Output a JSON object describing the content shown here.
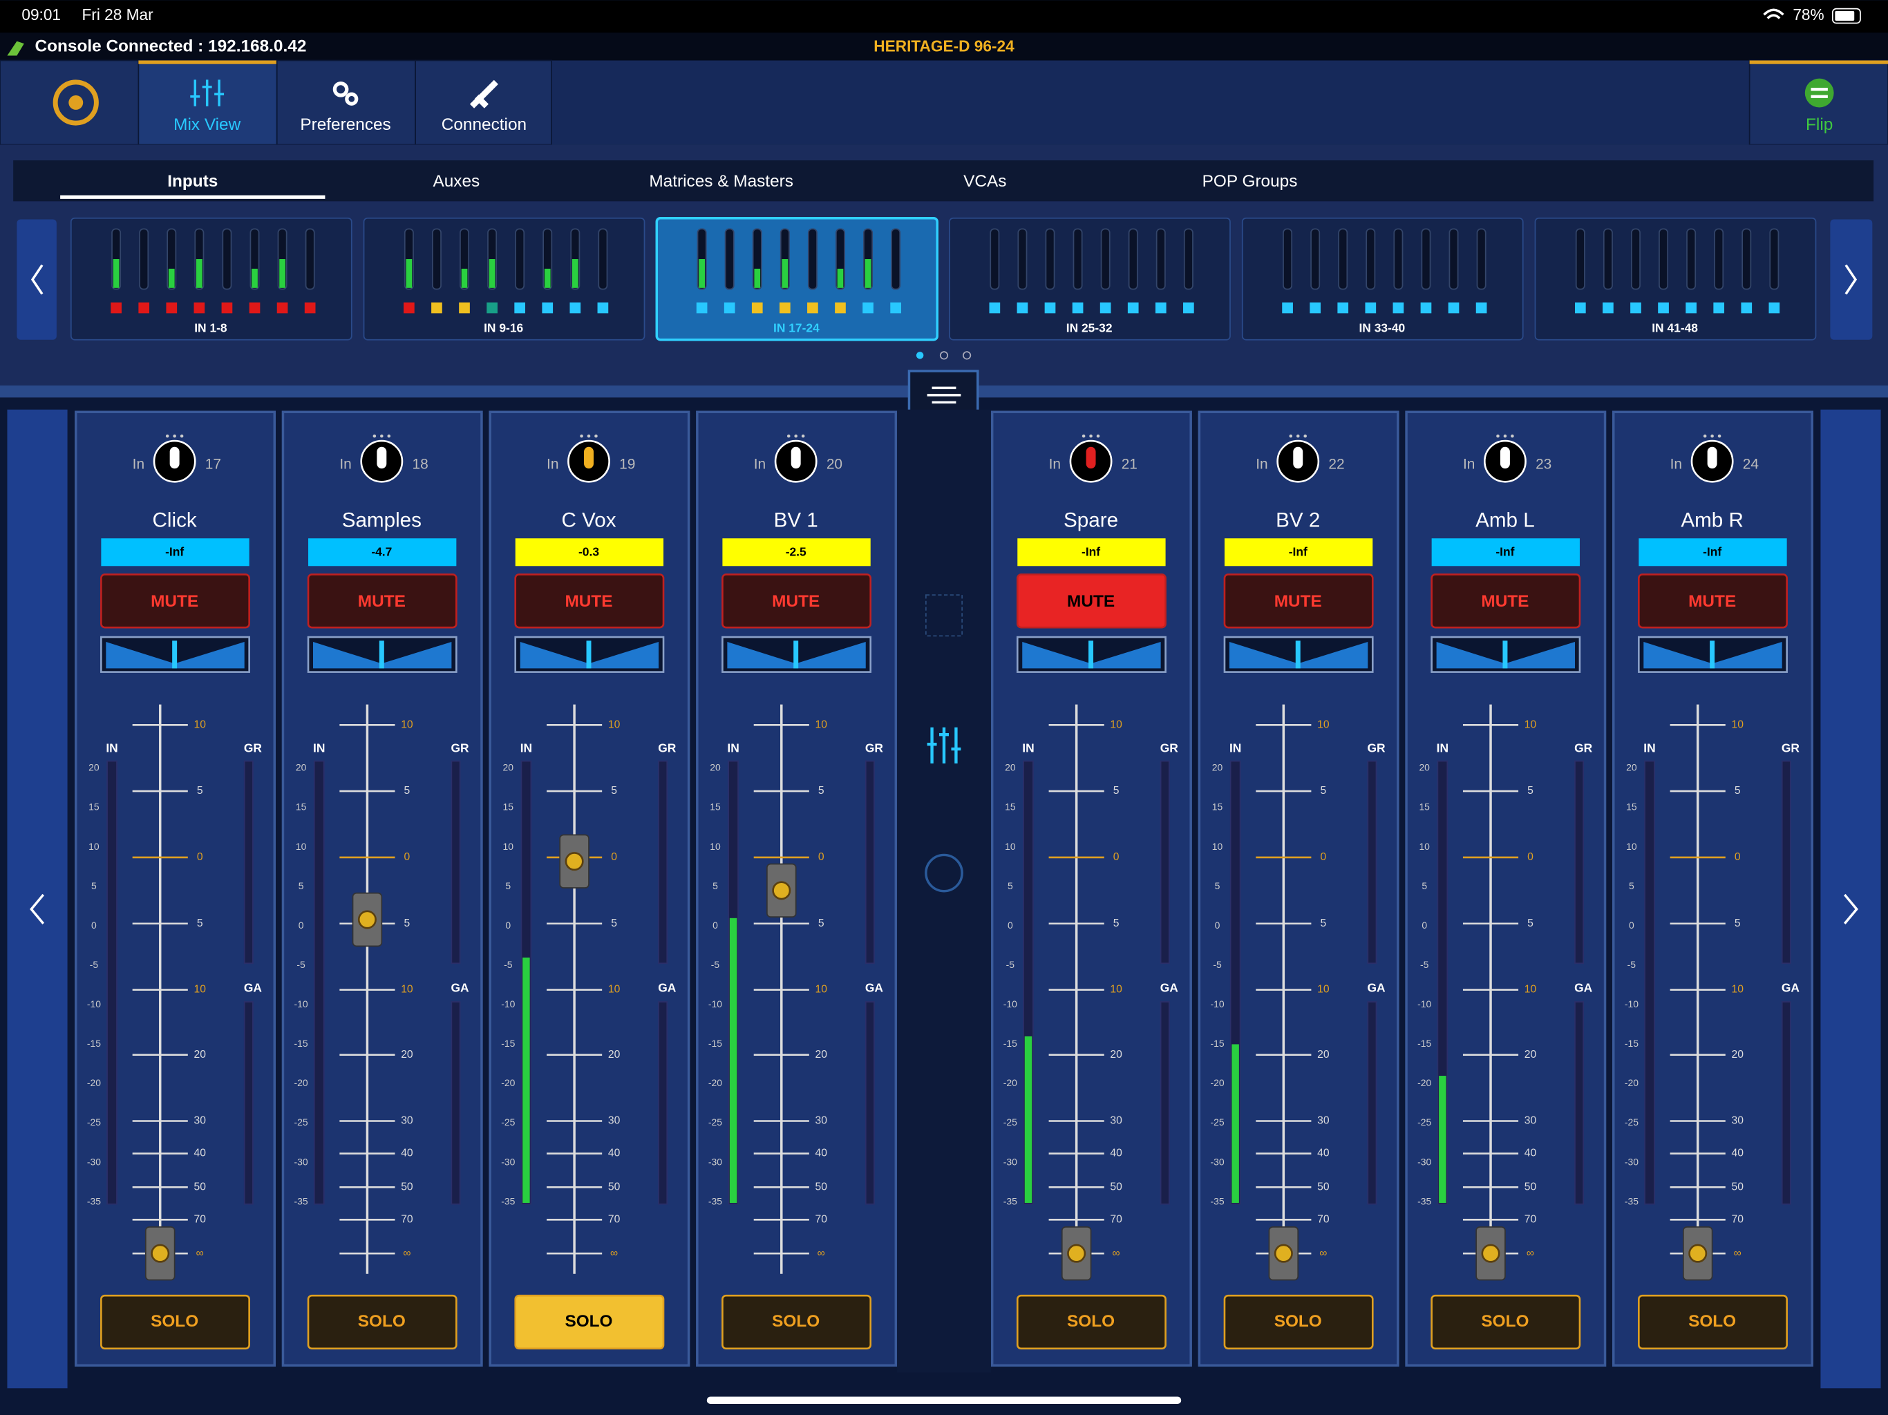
{
  "status_bar": {
    "time": "09:01",
    "date": "Fri 28 Mar",
    "battery": "78%"
  },
  "console_bar": {
    "connection": "Console Connected : 192.168.0.42",
    "model": "HERITAGE-D 96-24"
  },
  "nav": {
    "tabs": [
      "Mix View",
      "Preferences",
      "Connection"
    ],
    "flip": "Flip"
  },
  "sub_tabs": [
    "Inputs",
    "Auxes",
    "Matrices & Masters",
    "VCAs",
    "POP Groups"
  ],
  "banks": [
    "IN 1-8",
    "IN 9-16",
    "IN 17-24",
    "IN 25-32",
    "IN 33-40",
    "IN 41-48"
  ],
  "strip_labels": {
    "in": "In",
    "in_meter": "IN",
    "gr": "GR",
    "ga": "GA",
    "mute": "MUTE",
    "solo": "SOLO"
  },
  "fader_scale": [
    "10",
    "5",
    "0",
    "5",
    "10",
    "20",
    "30",
    "40",
    "50",
    "70",
    "∞"
  ],
  "meter_scale": [
    20,
    15,
    10,
    5,
    0,
    -5,
    -10,
    -15,
    -20,
    -25,
    -30,
    -35
  ],
  "channels": [
    {
      "number": 17,
      "name": "Click",
      "level": "-Inf",
      "level_color": "#00c0ff",
      "meter_db": null,
      "mute_on": false,
      "solo_on": false
    },
    {
      "number": 18,
      "name": "Samples",
      "level": "-4.7",
      "level_color": "#00c0ff",
      "meter_db": null,
      "mute_on": false,
      "solo_on": false
    },
    {
      "number": 19,
      "name": "C Vox",
      "level": "-0.3",
      "level_color": "#ffff00",
      "meter_db": -4,
      "mute_on": false,
      "solo_on": true
    },
    {
      "number": 20,
      "name": "BV 1",
      "level": "-2.5",
      "level_color": "#ffff00",
      "meter_db": 1,
      "mute_on": false,
      "solo_on": false
    },
    {
      "number": 21,
      "name": "Spare",
      "level": "-Inf",
      "level_color": "#ffff00",
      "meter_db": -14,
      "mute_on": true,
      "solo_on": false
    },
    {
      "number": 22,
      "name": "BV 2",
      "level": "-Inf",
      "level_color": "#ffff00",
      "meter_db": -15,
      "mute_on": false,
      "solo_on": false
    },
    {
      "number": 23,
      "name": "Amb L",
      "level": "-Inf",
      "level_color": "#00c0ff",
      "meter_db": -19,
      "mute_on": false,
      "solo_on": false
    },
    {
      "number": 24,
      "name": "Amb R",
      "level": "-Inf",
      "level_color": "#00c0ff",
      "meter_db": null,
      "mute_on": false,
      "solo_on": false
    }
  ]
}
